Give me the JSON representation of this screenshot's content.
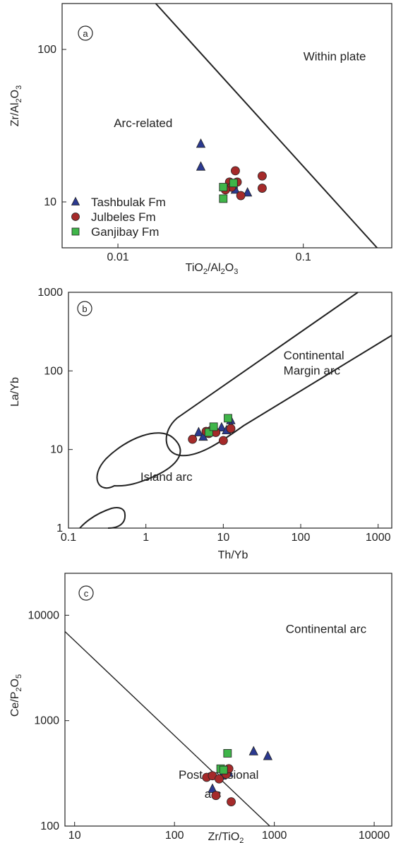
{
  "series_styles": [
    {
      "name": "Tashbulak Fm",
      "color": "#2b3990",
      "shape": "triangle"
    },
    {
      "name": "Julbeles Fm",
      "color": "#a52a2a",
      "shape": "circle"
    },
    {
      "name": "Ganjibay Fm",
      "color": "#3fb549",
      "shape": "square"
    }
  ],
  "chart_data": [
    {
      "type": "scatter",
      "panel_label": "a",
      "x_scale": "log",
      "y_scale": "log",
      "xlim": [
        0.005,
        0.3
      ],
      "ylim": [
        5,
        200
      ],
      "xticks": [
        0.01,
        0.1
      ],
      "yticks": [
        10,
        100
      ],
      "tick_labels_x": [
        "0.01",
        "0.1"
      ],
      "tick_labels_y": [
        "10",
        "100"
      ],
      "xlabel": {
        "parts": [
          "TiO",
          "2",
          "/Al",
          "2",
          "O",
          "3"
        ]
      },
      "ylabel": {
        "parts": [
          "Zr/Al",
          "2",
          "O",
          "3"
        ]
      },
      "regions": [
        {
          "text": "Within plate",
          "x": 0.1,
          "y": 85
        },
        {
          "text": "Arc-related",
          "x": 0.0095,
          "y": 31
        }
      ],
      "boundary_lines": [
        {
          "points": [
            [
              0.016,
              200
            ],
            [
              0.25,
              5
            ]
          ]
        }
      ],
      "legend": {
        "position": "bottom-left"
      },
      "series": [
        {
          "name": "Tashbulak Fm",
          "points": [
            [
              0.028,
              24
            ],
            [
              0.028,
              17
            ],
            [
              0.05,
              11.5
            ],
            [
              0.043,
              12
            ],
            [
              0.042,
              13
            ]
          ]
        },
        {
          "name": "Julbeles Fm",
          "points": [
            [
              0.04,
              13.5
            ],
            [
              0.043,
              16
            ],
            [
              0.046,
              11
            ],
            [
              0.06,
              14.8
            ],
            [
              0.06,
              12.3
            ],
            [
              0.041,
              12.5
            ],
            [
              0.038,
              12
            ],
            [
              0.044,
              13.5
            ]
          ]
        },
        {
          "name": "Ganjibay Fm",
          "points": [
            [
              0.037,
              10.5
            ],
            [
              0.037,
              12.5
            ],
            [
              0.042,
              13.3
            ]
          ]
        }
      ]
    },
    {
      "type": "scatter",
      "panel_label": "b",
      "x_scale": "log",
      "y_scale": "log",
      "xlim": [
        0.1,
        1500
      ],
      "ylim": [
        1,
        1000
      ],
      "xticks": [
        0.1,
        1,
        10,
        100,
        1000
      ],
      "yticks": [
        1,
        10,
        100,
        1000
      ],
      "tick_labels_x": [
        "0.1",
        "1",
        "10",
        "100",
        "1000"
      ],
      "tick_labels_y": [
        "1",
        "10",
        "100",
        "1000"
      ],
      "xlabel": {
        "parts": [
          "Th/Yb"
        ]
      },
      "ylabel": {
        "parts": [
          "La/Yb"
        ]
      },
      "regions": [
        {
          "text": "Continental",
          "x": 60,
          "y": 140
        },
        {
          "text": "Margin arc",
          "x": 60,
          "y": 90
        },
        {
          "text": "Island arc",
          "x": 0.85,
          "y": 4.0
        }
      ],
      "legend": {
        "position": "none"
      },
      "series": [
        {
          "name": "Tashbulak Fm",
          "points": [
            [
              4.8,
              16.5
            ],
            [
              5.5,
              14.5
            ],
            [
              7.5,
              17.5
            ],
            [
              9.5,
              19
            ],
            [
              11,
              17.5
            ],
            [
              12.5,
              23.5
            ],
            [
              12.5,
              20
            ]
          ]
        },
        {
          "name": "Julbeles Fm",
          "points": [
            [
              4,
              13.5
            ],
            [
              6.5,
              16
            ],
            [
              7,
              17.5
            ],
            [
              8,
              16.5
            ],
            [
              10,
              13
            ],
            [
              12.5,
              18.5
            ],
            [
              6,
              17
            ]
          ]
        },
        {
          "name": "Ganjibay Fm",
          "points": [
            [
              6.5,
              16.5
            ],
            [
              7.5,
              19.5
            ],
            [
              11.5,
              25
            ]
          ]
        }
      ]
    },
    {
      "type": "scatter",
      "panel_label": "c",
      "x_scale": "log",
      "y_scale": "log",
      "xlim": [
        8,
        15000
      ],
      "ylim": [
        100,
        25000
      ],
      "xticks": [
        10,
        100,
        1000,
        10000
      ],
      "yticks": [
        100,
        1000,
        10000
      ],
      "tick_labels_x": [
        "10",
        "100",
        "1000",
        "10000"
      ],
      "tick_labels_y": [
        "100",
        "1000",
        "10000"
      ],
      "xlabel": {
        "parts": [
          "Zr/TiO",
          "2"
        ]
      },
      "ylabel": {
        "parts": [
          "Ce/P",
          "2",
          "O",
          "5"
        ]
      },
      "regions": [
        {
          "text": "Continental arc",
          "x": 1300,
          "y": 6800
        },
        {
          "text": "Post-collisional",
          "x": 110,
          "y": 280
        },
        {
          "text": "arc",
          "x": 200,
          "y": 185
        }
      ],
      "boundary_lines": [
        {
          "points": [
            [
              8,
              7000
            ],
            [
              900,
              100
            ]
          ]
        }
      ],
      "legend": {
        "position": "none"
      },
      "series": [
        {
          "name": "Tashbulak Fm",
          "points": [
            [
              240,
              225
            ],
            [
              300,
              300
            ],
            [
              310,
              320
            ],
            [
              350,
              320
            ],
            [
              620,
              510
            ],
            [
              860,
              460
            ]
          ]
        },
        {
          "name": "Julbeles Fm",
          "points": [
            [
              210,
              290
            ],
            [
              240,
              300
            ],
            [
              280,
              280
            ],
            [
              330,
              310
            ],
            [
              350,
              350
            ],
            [
              260,
              195
            ],
            [
              370,
              170
            ]
          ]
        },
        {
          "name": "Ganjibay Fm",
          "points": [
            [
              290,
              350
            ],
            [
              310,
              340
            ],
            [
              340,
              490
            ]
          ]
        }
      ]
    }
  ]
}
